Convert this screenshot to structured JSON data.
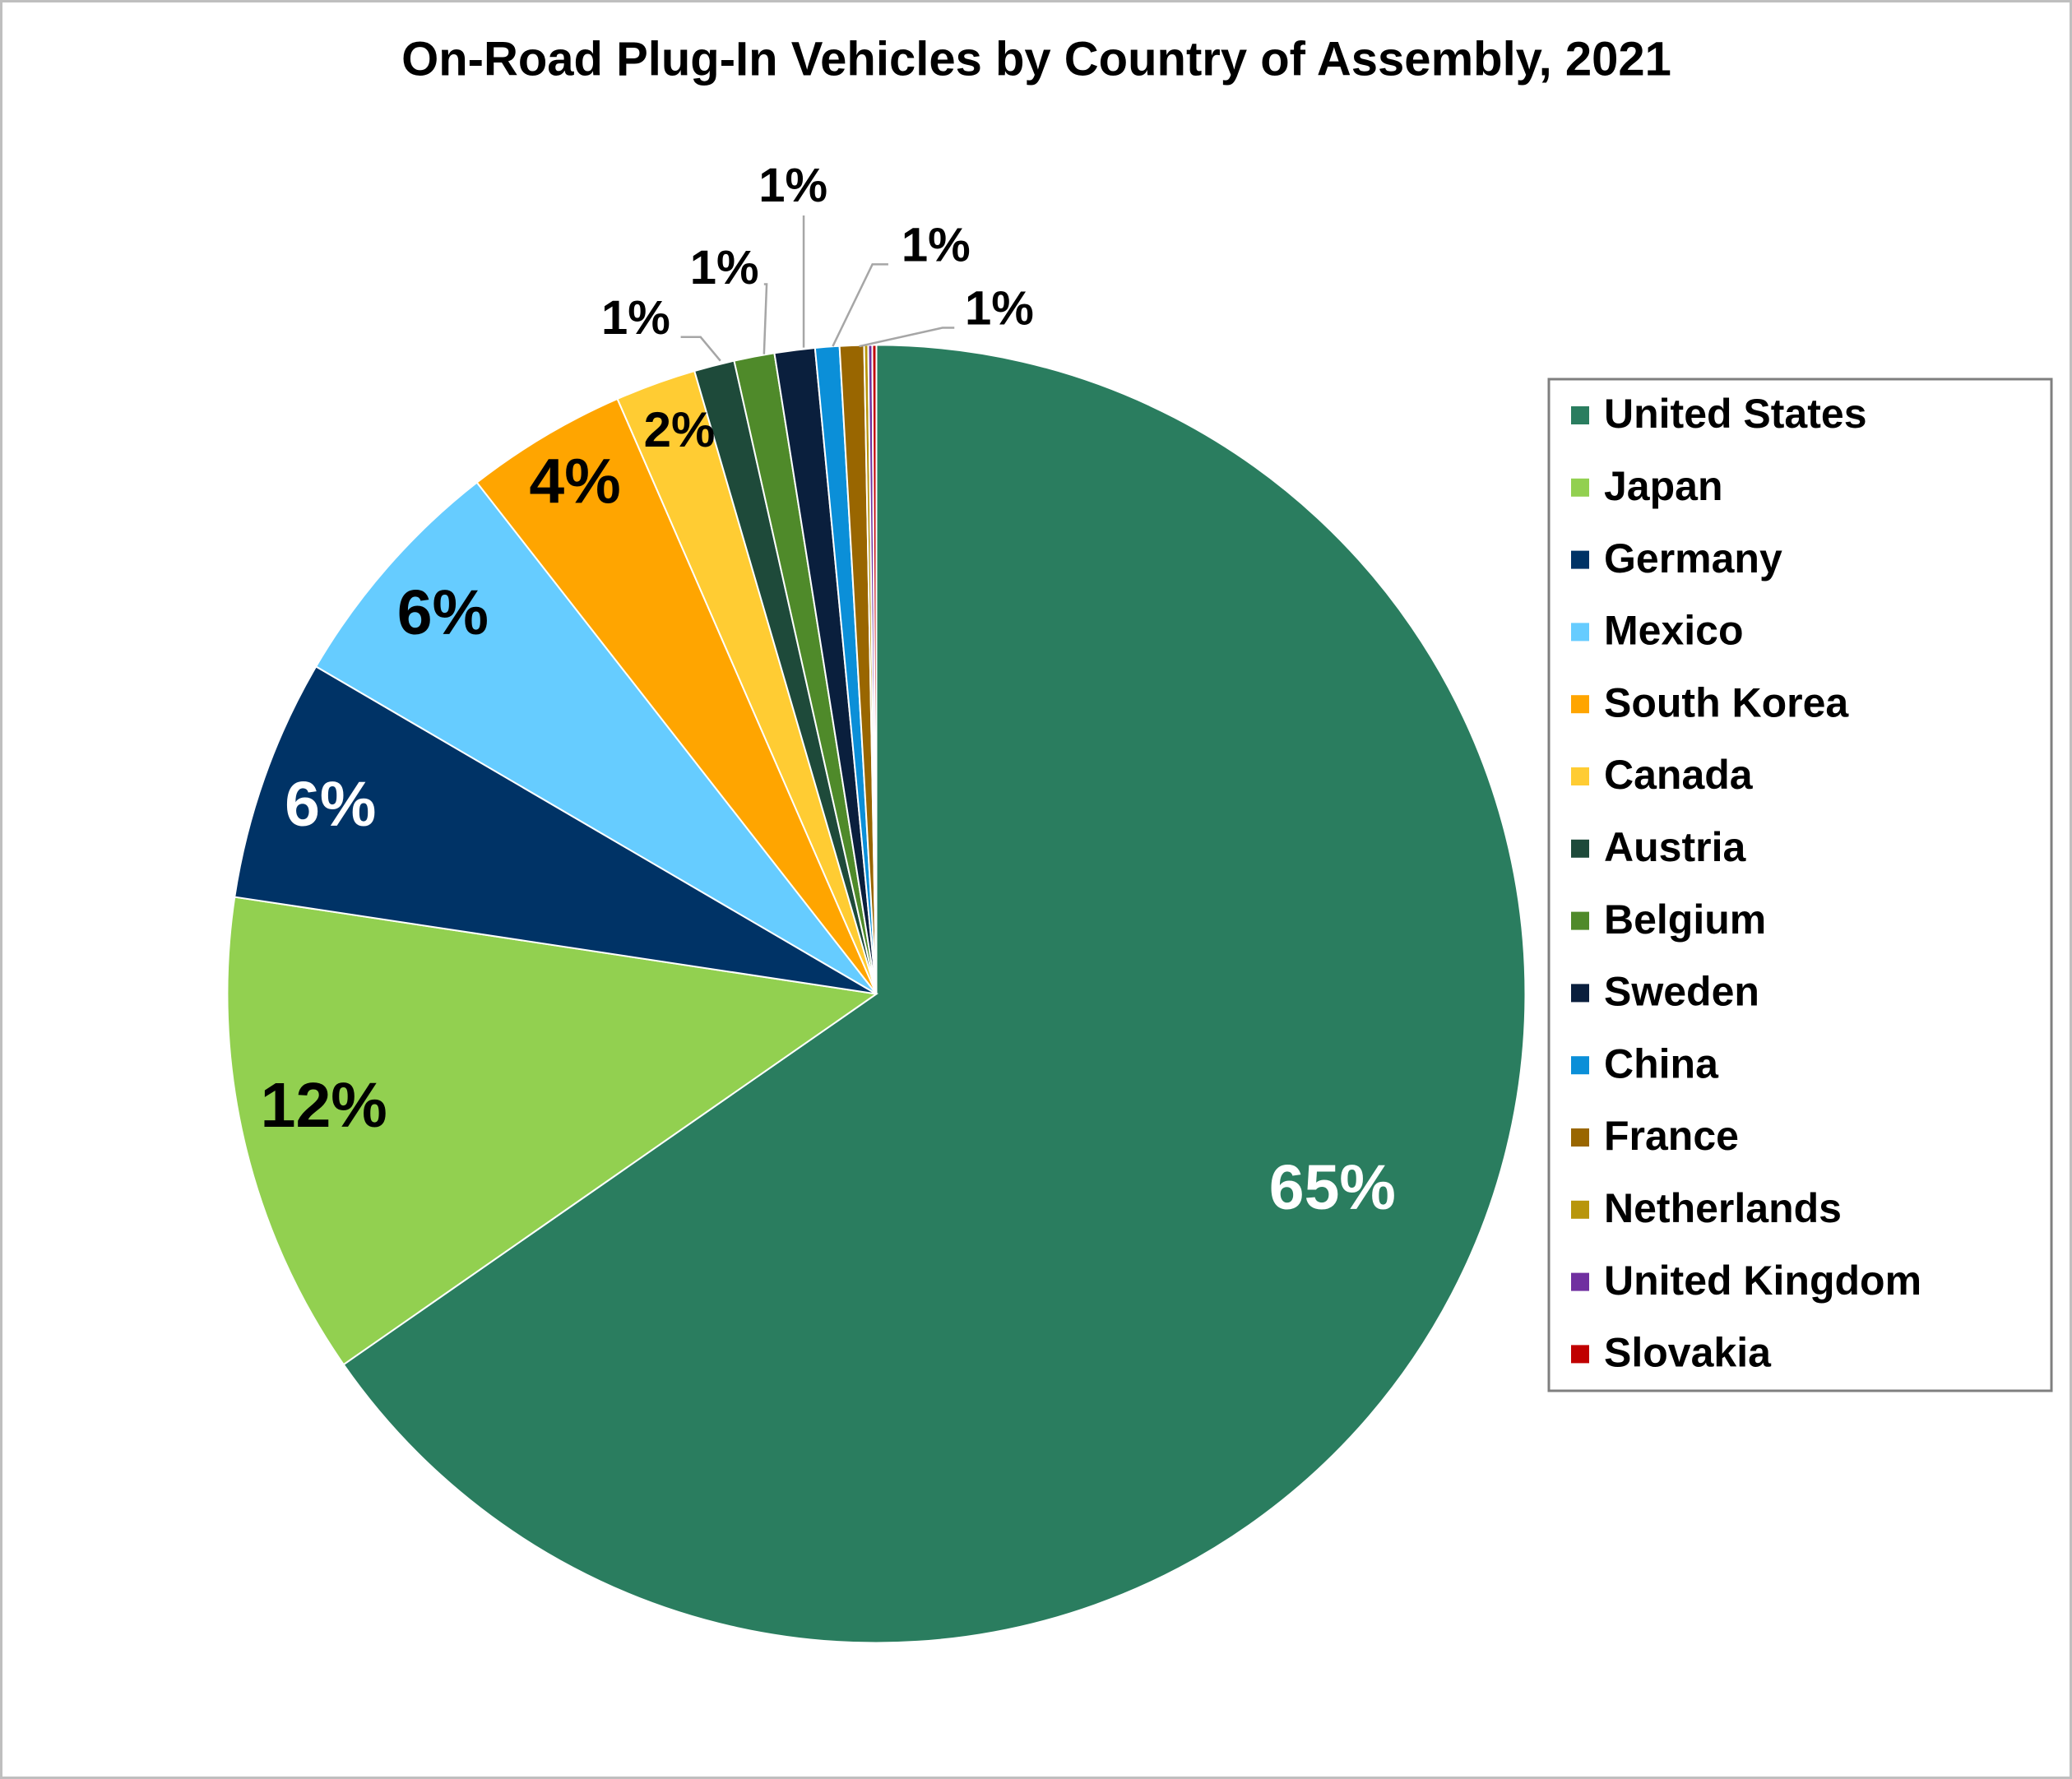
{
  "chart_data": {
    "type": "pie",
    "title": "On-Road Plug-In Vehicles by Country of Assembly, 2021",
    "categories": [
      "United States",
      "Japan",
      "Germany",
      "Mexico",
      "South Korea",
      "Canada",
      "Austria",
      "Belgium",
      "Sweden",
      "China",
      "France",
      "Netherlands",
      "United Kingdom",
      "Slovakia"
    ],
    "values": [
      65,
      12,
      6,
      6,
      4,
      2,
      1,
      1,
      1,
      0.6,
      0.6,
      0.1,
      0.1,
      0.1
    ],
    "value_labels": [
      "65%",
      "12%",
      "6%",
      "6%",
      "4%",
      "2%",
      "1%",
      "1%",
      "1%",
      "1%",
      "1%",
      null,
      null,
      null
    ],
    "colors": [
      "#2a7d5f",
      "#92d050",
      "#003366",
      "#66ccff",
      "#ffa500",
      "#ffcc33",
      "#1e4a3a",
      "#4f8a2a",
      "#0a1f3d",
      "#0b8fd8",
      "#996600",
      "#b8960c",
      "#7030a0",
      "#c00000"
    ],
    "legend": "right"
  }
}
